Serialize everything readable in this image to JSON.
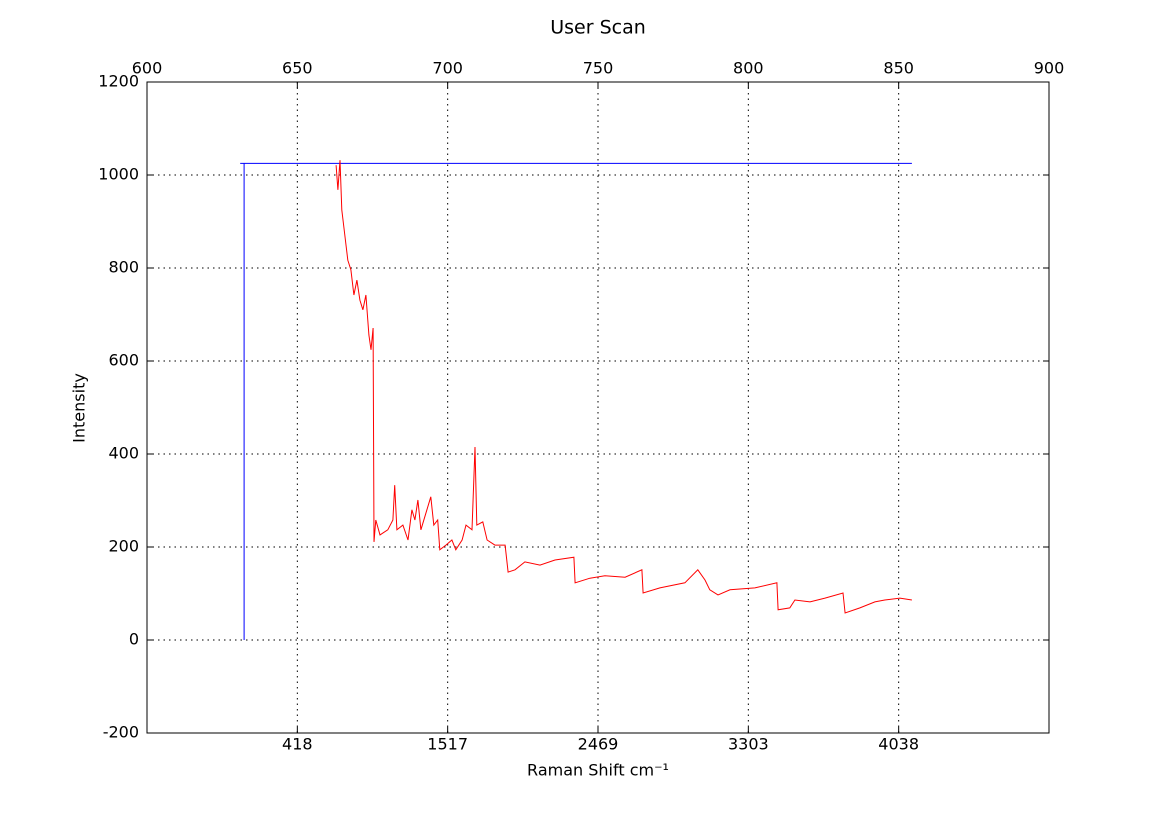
{
  "chart_data": {
    "type": "line",
    "title": "User Scan",
    "x_label": "Raman Shift cm⁻¹",
    "y_label": "Intensity",
    "xlim": [
      600,
      900
    ],
    "xticks": [
      600,
      650,
      700,
      750,
      800,
      850,
      900
    ],
    "x2ticks": [
      {
        "value": 650,
        "label": "418"
      },
      {
        "value": 700,
        "label": "1517"
      },
      {
        "value": 750,
        "label": "2469"
      },
      {
        "value": 800,
        "label": "3303"
      },
      {
        "value": 850,
        "label": "4038"
      }
    ],
    "ylim": [
      -200,
      1200
    ],
    "yticks": [
      -200,
      0,
      200,
      400,
      600,
      800,
      1000,
      1200
    ],
    "grid": true,
    "series": [
      {
        "color": "#0000ff",
        "x": [
          632.3,
          632.3,
          631,
          854.4
        ],
        "values": [
          0,
          1025,
          1025,
          1025
        ]
      },
      {
        "color": "#ff0000",
        "x": [
          662.9,
          663.5,
          664.2,
          664.8,
          665.8,
          666.8,
          667.8,
          668.8,
          669.8,
          670.8,
          671.8,
          672.8,
          673.8,
          674.5,
          675.2,
          675.5,
          676.1,
          677.5,
          680.1,
          681.8,
          682.4,
          683.1,
          685.1,
          686.8,
          688.1,
          689.1,
          690.1,
          691.1,
          693.1,
          694.4,
          695.4,
          696.7,
          697.4,
          699.4,
          701.4,
          702.7,
          704.8,
          706.1,
          708.1,
          709.1,
          709.7,
          711.7,
          713.1,
          715.7,
          719.1,
          720.1,
          722.4,
          725.7,
          730.7,
          735.7,
          742.0,
          742.4,
          747.3,
          752.3,
          759.0,
          764.6,
          765.0,
          770.6,
          778.9,
          783.2,
          785.6,
          787.2,
          789.9,
          793.9,
          802.2,
          809.5,
          809.9,
          813.8,
          815.5,
          820.5,
          825.5,
          831.5,
          832.2,
          837.1,
          842.1,
          845.4,
          850.4,
          854.4
        ],
        "values": [
          1021,
          968,
          1032,
          925,
          871,
          817,
          796,
          742,
          774,
          731,
          710,
          742,
          656,
          624,
          671,
          211,
          258,
          226,
          237,
          258,
          333,
          237,
          247,
          215,
          280,
          258,
          301,
          237,
          280,
          308,
          247,
          258,
          194,
          204,
          215,
          194,
          215,
          247,
          237,
          415,
          247,
          254,
          215,
          204,
          204,
          146,
          151,
          168,
          161,
          172,
          178,
          123,
          133,
          138,
          135,
          151,
          101,
          112,
          123,
          151,
          129,
          108,
          97,
          108,
          112,
          123,
          65,
          69,
          86,
          82,
          90,
          101,
          58,
          69,
          82,
          86,
          90,
          86
        ]
      }
    ]
  }
}
